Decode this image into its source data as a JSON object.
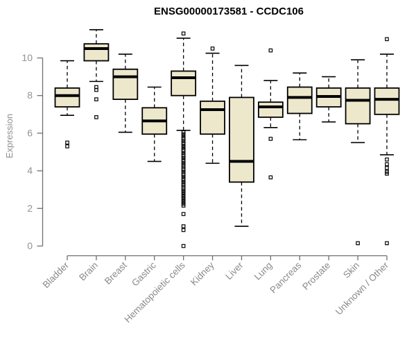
{
  "chart_data": {
    "type": "boxplot",
    "title": "ENSG00000173581 - CCDC106",
    "xlabel": "",
    "ylabel": "Expression",
    "ylim": [
      0,
      11.6
    ],
    "yticks": [
      0,
      2,
      4,
      6,
      8,
      10
    ],
    "grid": false,
    "legend": "none",
    "categories": [
      "Bladder",
      "Brain",
      "Breast",
      "Gastric",
      "Hematopoietic cells",
      "Kidney",
      "Liver",
      "Lung",
      "Pancreas",
      "Prostate",
      "Skin",
      "Unknown / Other"
    ],
    "series": [
      {
        "name": "Bladder",
        "low": 6.95,
        "q1": 7.4,
        "median": 8.0,
        "q3": 8.4,
        "high": 9.85,
        "outliers": [
          5.5,
          5.3
        ]
      },
      {
        "name": "Brain",
        "low": 8.75,
        "q1": 9.85,
        "median": 10.5,
        "q3": 10.75,
        "high": 11.5,
        "outliers": [
          8.45,
          8.3,
          7.8,
          6.85
        ]
      },
      {
        "name": "Breast",
        "low": 6.05,
        "q1": 7.8,
        "median": 9.0,
        "q3": 9.4,
        "high": 10.2,
        "outliers": []
      },
      {
        "name": "Gastric",
        "low": 4.5,
        "q1": 5.95,
        "median": 6.65,
        "q3": 7.35,
        "high": 8.45,
        "outliers": []
      },
      {
        "name": "Hematopoietic cells",
        "low": 6.15,
        "q1": 8.0,
        "median": 8.95,
        "q3": 9.3,
        "high": 11.05,
        "outliers": [
          11.3,
          6.05,
          5.95,
          5.85,
          5.75,
          5.68,
          5.6,
          5.5,
          5.42,
          5.32,
          5.22,
          5.12,
          5.05,
          4.95,
          4.85,
          4.78,
          4.68,
          4.58,
          4.5,
          4.4,
          4.3,
          4.22,
          4.12,
          4.05,
          3.95,
          3.85,
          3.78,
          3.68,
          3.58,
          3.5,
          3.4,
          3.3,
          3.22,
          3.12,
          3.05,
          2.95,
          2.85,
          2.75,
          2.65,
          2.55,
          2.45,
          2.35,
          2.25,
          2.15,
          1.7,
          1.05,
          0.85,
          0.0
        ]
      },
      {
        "name": "Kidney",
        "low": 4.4,
        "q1": 5.95,
        "median": 7.25,
        "q3": 7.7,
        "high": 10.25,
        "outliers": [
          10.5
        ]
      },
      {
        "name": "Liver",
        "low": 1.05,
        "q1": 3.4,
        "median": 4.5,
        "q3": 7.9,
        "high": 9.6,
        "outliers": []
      },
      {
        "name": "Lung",
        "low": 6.3,
        "q1": 6.85,
        "median": 7.4,
        "q3": 7.65,
        "high": 8.8,
        "outliers": [
          10.4,
          5.7,
          3.65
        ]
      },
      {
        "name": "Pancreas",
        "low": 5.65,
        "q1": 7.05,
        "median": 7.9,
        "q3": 8.45,
        "high": 9.2,
        "outliers": []
      },
      {
        "name": "Prostate",
        "low": 6.6,
        "q1": 7.4,
        "median": 7.95,
        "q3": 8.4,
        "high": 9.0,
        "outliers": []
      },
      {
        "name": "Skin",
        "low": 5.5,
        "q1": 6.5,
        "median": 7.75,
        "q3": 8.4,
        "high": 9.9,
        "outliers": [
          0.15
        ]
      },
      {
        "name": "Unknown / Other",
        "low": 4.85,
        "q1": 7.0,
        "median": 7.8,
        "q3": 8.4,
        "high": 10.2,
        "outliers": [
          11.0,
          4.6,
          4.35,
          4.15,
          3.95,
          3.85,
          0.15
        ]
      }
    ]
  },
  "colors": {
    "background": "#ffffff",
    "box_fill": "#EDE7CC",
    "box_stroke": "#000000",
    "median": "#000000",
    "whisker": "#000000",
    "outlier": "#000000",
    "axis_line": "#6e6e6e",
    "y_tick_label": "#8f9399",
    "x_tick_label": "#8a8a8a",
    "title": "#000000"
  }
}
